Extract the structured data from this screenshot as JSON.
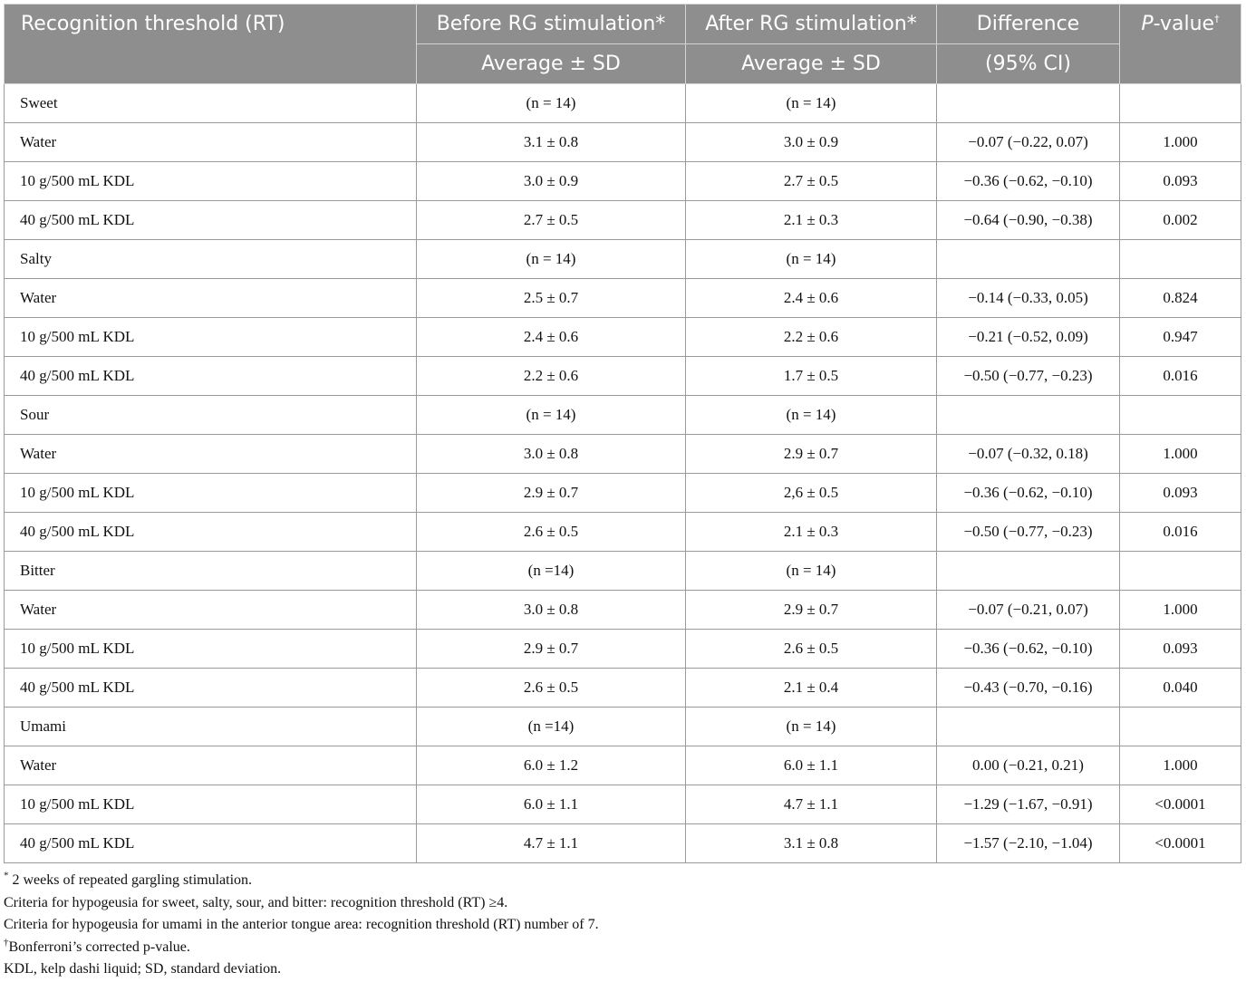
{
  "header": {
    "col1": "Recognition threshold (RT)",
    "col2_top": "Before RG stimulation*",
    "col2_bottom": "Average ± SD",
    "col3_top": "After RG stimulation*",
    "col3_bottom": "Average ± SD",
    "col4_top": "Difference",
    "col4_bottom": "(95% CI)",
    "col5_italic": "P",
    "col5_rest": "-value",
    "col5_sup": "†"
  },
  "rows": [
    {
      "label": "Sweet",
      "before": "(n = 14)",
      "after": "(n = 14)",
      "diff": "",
      "p": ""
    },
    {
      "label": "Water",
      "before": "3.1 ± 0.8",
      "after": "3.0 ± 0.9",
      "diff": "−0.07 (−0.22, 0.07)",
      "p": "1.000"
    },
    {
      "label": "10 g/500 mL KDL",
      "before": "3.0 ± 0.9",
      "after": "2.7 ± 0.5",
      "diff": "−0.36 (−0.62, −0.10)",
      "p": "0.093"
    },
    {
      "label": "40 g/500 mL KDL",
      "before": "2.7 ± 0.5",
      "after": "2.1 ± 0.3",
      "diff": "−0.64 (−0.90, −0.38)",
      "p": "0.002"
    },
    {
      "label": "Salty",
      "before": "(n = 14)",
      "after": "(n = 14)",
      "diff": "",
      "p": ""
    },
    {
      "label": "Water",
      "before": "2.5 ± 0.7",
      "after": "2.4 ± 0.6",
      "diff": "−0.14 (−0.33, 0.05)",
      "p": "0.824"
    },
    {
      "label": "10 g/500 mL KDL",
      "before": "2.4 ± 0.6",
      "after": "2.2 ± 0.6",
      "diff": "−0.21 (−0.52, 0.09)",
      "p": "0.947"
    },
    {
      "label": "40 g/500 mL KDL",
      "before": "2.2 ± 0.6",
      "after": "1.7 ± 0.5",
      "diff": "−0.50 (−0.77, −0.23)",
      "p": "0.016"
    },
    {
      "label": "Sour",
      "before": "(n = 14)",
      "after": "(n = 14)",
      "diff": "",
      "p": ""
    },
    {
      "label": "Water",
      "before": "3.0 ± 0.8",
      "after": "2.9 ± 0.7",
      "diff": "−0.07 (−0.32, 0.18)",
      "p": "1.000"
    },
    {
      "label": "10 g/500 mL KDL",
      "before": "2.9 ± 0.7",
      "after": "2,6 ± 0.5",
      "diff": "−0.36 (−0.62, −0.10)",
      "p": "0.093"
    },
    {
      "label": "40 g/500 mL KDL",
      "before": "2.6 ± 0.5",
      "after": "2.1 ± 0.3",
      "diff": "−0.50 (−0.77, −0.23)",
      "p": "0.016"
    },
    {
      "label": "Bitter",
      "before": "(n =14)",
      "after": "(n = 14)",
      "diff": "",
      "p": ""
    },
    {
      "label": "Water",
      "before": "3.0 ± 0.8",
      "after": "2.9 ± 0.7",
      "diff": "−0.07 (−0.21, 0.07)",
      "p": "1.000"
    },
    {
      "label": "10 g/500 mL KDL",
      "before": "2.9 ± 0.7",
      "after": "2.6 ± 0.5",
      "diff": "−0.36 (−0.62, −0.10)",
      "p": "0.093"
    },
    {
      "label": "40 g/500 mL KDL",
      "before": "2.6 ± 0.5",
      "after": "2.1 ± 0.4",
      "diff": "−0.43 (−0.70, −0.16)",
      "p": "0.040"
    },
    {
      "label": "Umami",
      "before": "(n =14)",
      "after": "(n = 14)",
      "diff": "",
      "p": ""
    },
    {
      "label": "Water",
      "before": "6.0 ± 1.2",
      "after": "6.0 ± 1.1",
      "diff": "0.00 (−0.21, 0.21)",
      "p": "1.000"
    },
    {
      "label": "10 g/500 mL KDL",
      "before": "6.0 ± 1.1",
      "after": "4.7 ± 1.1",
      "diff": "−1.29 (−1.67, −0.91)",
      "p": "<0.0001"
    },
    {
      "label": "40 g/500 mL KDL",
      "before": "4.7 ± 1.1",
      "after": "3.1 ± 0.8",
      "diff": "−1.57 (−2.10, −1.04)",
      "p": "<0.0001"
    }
  ],
  "notes": {
    "n1_sup": "*",
    "n1": " 2 weeks of repeated gargling stimulation.",
    "n2": "Criteria for hypogeusia for sweet, salty, sour, and bitter: recognition threshold (RT) ≥4.",
    "n3": "Criteria for hypogeusia for umami in the anterior tongue area: recognition threshold (RT) number of 7.",
    "n4_sup": "†",
    "n4": "Bonferroni’s corrected p-value.",
    "n5": "KDL, kelp dashi liquid; SD, standard deviation."
  },
  "colors": {
    "header_bg": "#8e8e8e",
    "header_text": "#ffffff",
    "border": "#9a9a9a"
  }
}
